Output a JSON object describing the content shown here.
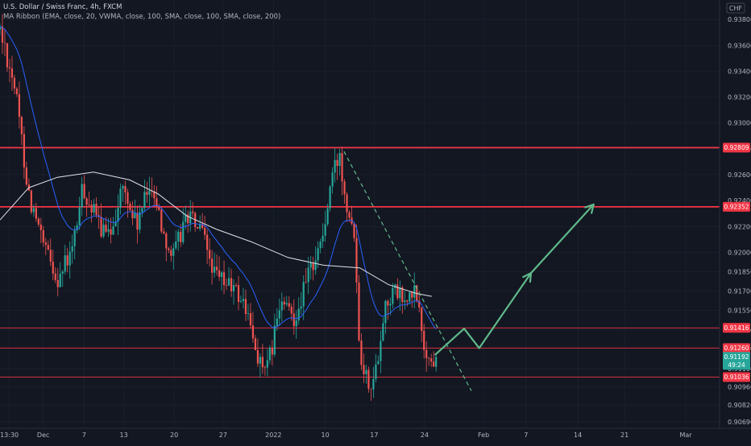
{
  "header": {
    "title": "U.S. Dollar / Swiss Franc, 4h, FXCM",
    "indicator": "MA Ribbon (EMA, close, 20, VWMA, close, 100, SMA, close, 100, SMA, close, 200)"
  },
  "currency_badge": "CHF",
  "colors": {
    "background": "#131722",
    "up": "#26a69a",
    "down": "#ef5350",
    "level_line": "#f23645",
    "ma_fast": "#2962ff",
    "ma_slow": "#e0e3eb",
    "projection": "#5fb98a",
    "axis_text": "#b2b5be",
    "grid": "#1f2433"
  },
  "chart_data": {
    "type": "candlestick",
    "symbol": "USDCHF",
    "timeframe": "4h",
    "y_axis": {
      "min": 0.9064,
      "max": 0.9395,
      "tick_labels": [
        "0.93800",
        "0.93600",
        "0.93400",
        "0.93200",
        "0.93000",
        "0.92800",
        "0.92600",
        "0.92400",
        "0.92200",
        "0.92000",
        "0.91850",
        "0.91700",
        "0.91550",
        "0.91400",
        "0.91260",
        "0.91100",
        "0.90960",
        "0.90820",
        "0.90690"
      ],
      "tick_values": [
        0.938,
        0.936,
        0.934,
        0.932,
        0.93,
        0.928,
        0.926,
        0.924,
        0.922,
        0.92,
        0.9185,
        0.917,
        0.9155,
        0.914,
        0.9126,
        0.911,
        0.9096,
        0.9082,
        0.9069
      ]
    },
    "x_axis": {
      "labels": [
        "13:30",
        "Dec",
        "7",
        "13",
        "20",
        "27",
        "2022",
        "10",
        "17",
        "24",
        "Feb",
        "7",
        "14",
        "21",
        "Mar"
      ],
      "label_fractions": [
        0.013,
        0.06,
        0.117,
        0.172,
        0.242,
        0.31,
        0.38,
        0.452,
        0.52,
        0.59,
        0.672,
        0.731,
        0.803,
        0.868,
        0.953
      ]
    },
    "horizontal_levels": [
      {
        "value": 0.92809,
        "label": "0.92809",
        "weight": "thick"
      },
      {
        "value": 0.92352,
        "label": "0.92352",
        "weight": "thick"
      },
      {
        "value": 0.91416,
        "label": "0.91416",
        "weight": "thin"
      },
      {
        "value": 0.9126,
        "label": "0.91260",
        "weight": "thin"
      },
      {
        "value": 0.91036,
        "label": "0.91036",
        "weight": "thin"
      }
    ],
    "last_price": {
      "value": 0.91192,
      "label": "0.91192",
      "countdown": "49:24"
    },
    "trendline": {
      "from_time": 0.478,
      "from_price": 0.9278,
      "to_time": 0.655,
      "to_price": 0.9093
    },
    "projection_path": [
      {
        "time": 0.605,
        "price": 0.9121
      },
      {
        "time": 0.645,
        "price": 0.9141
      },
      {
        "time": 0.666,
        "price": 0.9126
      },
      {
        "time": 0.738,
        "price": 0.9184
      },
      {
        "time": 0.825,
        "price": 0.9237
      }
    ],
    "anchors": [
      {
        "t": 0.0,
        "p": 0.9372
      },
      {
        "t": 0.02,
        "p": 0.933
      },
      {
        "t": 0.04,
        "p": 0.9245
      },
      {
        "t": 0.06,
        "p": 0.9205
      },
      {
        "t": 0.08,
        "p": 0.918
      },
      {
        "t": 0.1,
        "p": 0.92
      },
      {
        "t": 0.115,
        "p": 0.925
      },
      {
        "t": 0.13,
        "p": 0.923
      },
      {
        "t": 0.15,
        "p": 0.921
      },
      {
        "t": 0.17,
        "p": 0.925
      },
      {
        "t": 0.19,
        "p": 0.922
      },
      {
        "t": 0.21,
        "p": 0.9255
      },
      {
        "t": 0.225,
        "p": 0.922
      },
      {
        "t": 0.24,
        "p": 0.9195
      },
      {
        "t": 0.26,
        "p": 0.923
      },
      {
        "t": 0.28,
        "p": 0.9215
      },
      {
        "t": 0.3,
        "p": 0.918
      },
      {
        "t": 0.32,
        "p": 0.9175
      },
      {
        "t": 0.34,
        "p": 0.916
      },
      {
        "t": 0.355,
        "p": 0.9125
      },
      {
        "t": 0.37,
        "p": 0.9105
      },
      {
        "t": 0.39,
        "p": 0.916
      },
      {
        "t": 0.41,
        "p": 0.915
      },
      {
        "t": 0.43,
        "p": 0.9185
      },
      {
        "t": 0.45,
        "p": 0.9215
      },
      {
        "t": 0.462,
        "p": 0.926
      },
      {
        "t": 0.472,
        "p": 0.9275
      },
      {
        "t": 0.482,
        "p": 0.9238
      },
      {
        "t": 0.492,
        "p": 0.922
      },
      {
        "t": 0.5,
        "p": 0.9125
      },
      {
        "t": 0.51,
        "p": 0.9102
      },
      {
        "t": 0.52,
        "p": 0.91
      },
      {
        "t": 0.535,
        "p": 0.916
      },
      {
        "t": 0.55,
        "p": 0.917
      },
      {
        "t": 0.565,
        "p": 0.916
      },
      {
        "t": 0.578,
        "p": 0.917
      },
      {
        "t": 0.59,
        "p": 0.9125
      },
      {
        "t": 0.6,
        "p": 0.9113
      },
      {
        "t": 0.606,
        "p": 0.9119
      }
    ],
    "ma_slow_points": [
      {
        "t": 0.0,
        "p": 0.9225
      },
      {
        "t": 0.04,
        "p": 0.925
      },
      {
        "t": 0.08,
        "p": 0.9258
      },
      {
        "t": 0.13,
        "p": 0.9262
      },
      {
        "t": 0.18,
        "p": 0.9256
      },
      {
        "t": 0.22,
        "p": 0.9245
      },
      {
        "t": 0.26,
        "p": 0.9228
      },
      {
        "t": 0.3,
        "p": 0.9218
      },
      {
        "t": 0.35,
        "p": 0.9208
      },
      {
        "t": 0.4,
        "p": 0.9196
      },
      {
        "t": 0.45,
        "p": 0.919
      },
      {
        "t": 0.5,
        "p": 0.9188
      },
      {
        "t": 0.54,
        "p": 0.9175
      },
      {
        "t": 0.58,
        "p": 0.9168
      },
      {
        "t": 0.6,
        "p": 0.9166
      }
    ]
  }
}
